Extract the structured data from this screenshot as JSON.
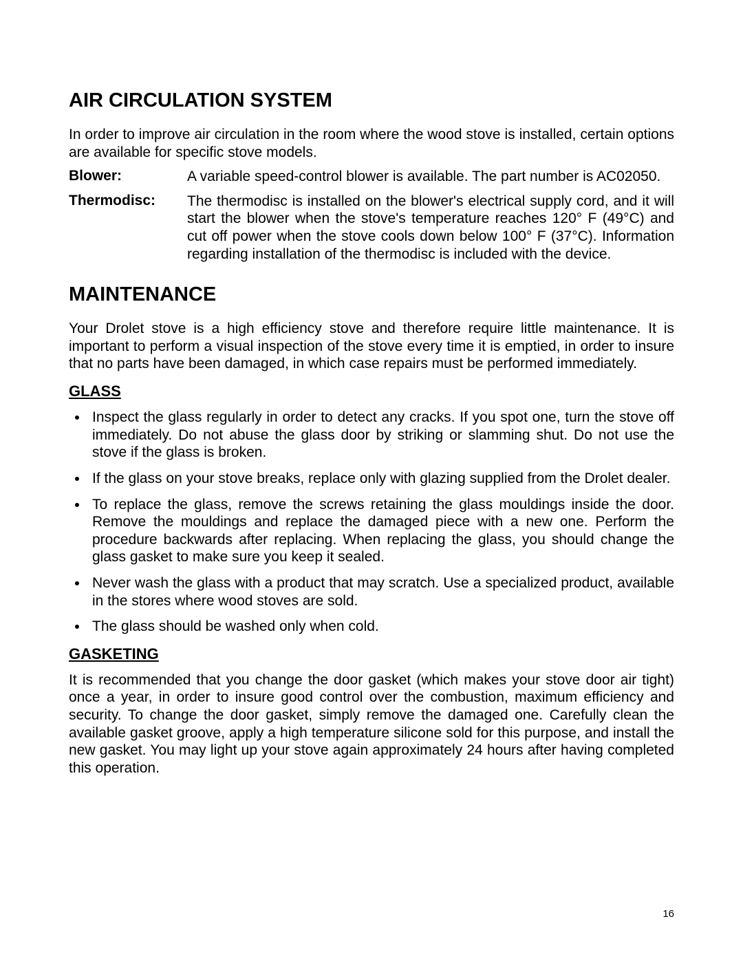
{
  "sections": {
    "air_system": {
      "heading": "AIR CIRCULATION SYSTEM",
      "intro": "In order to improve air circulation in the room where the wood stove is installed, certain options are available for specific stove models.",
      "blower": {
        "label": "Blower:",
        "text": "A variable speed-control blower is available.  The part number is AC02050."
      },
      "thermodisc": {
        "label": "Thermodisc:",
        "text": "The thermodisc is installed on the blower's electrical supply cord, and it will start the blower when the stove's temperature reaches 120° F (49°C) and cut off power when the stove cools down below 100° F (37°C).  Information regarding installation of the thermodisc is included with the device."
      }
    },
    "maintenance": {
      "heading": "MAINTENANCE",
      "intro": "Your Drolet stove is a high efficiency stove and therefore require little maintenance. It is important to perform a visual inspection of the stove every time it is emptied, in order to insure that no parts have been damaged, in which case repairs must be performed immediately.",
      "glass": {
        "heading": "GLASS",
        "items": [
          "Inspect the glass regularly in order to detect any cracks.  If you spot one, turn the stove off immediately.  Do not abuse the glass door by striking or slamming shut.  Do not use the stove if the glass is broken.",
          "If the glass on your stove breaks, replace only with glazing supplied from the Drolet dealer.",
          "To replace the glass, remove the screws retaining the glass mouldings inside the door.  Remove the mouldings and replace the damaged piece with a new one.  Perform the procedure backwards after replacing.  When replacing the glass, you should change the glass gasket to make sure you keep it sealed.",
          "Never wash the glass with a product that may scratch. Use a specialized product, available in the stores where wood stoves are sold.",
          "The glass should be washed only when cold."
        ]
      },
      "gasketing": {
        "heading": "GASKETING",
        "text": "It is recommended that you change the door gasket (which makes your stove door air tight) once a year, in order to insure good control over the combustion, maximum efficiency and security.  To change the door gasket, simply remove the damaged one.  Carefully clean the available gasket groove, apply a high temperature silicone sold for this purpose, and install the new gasket.  You may light up your stove again approximately 24 hours after having completed this operation."
      }
    }
  },
  "page_number": "16"
}
